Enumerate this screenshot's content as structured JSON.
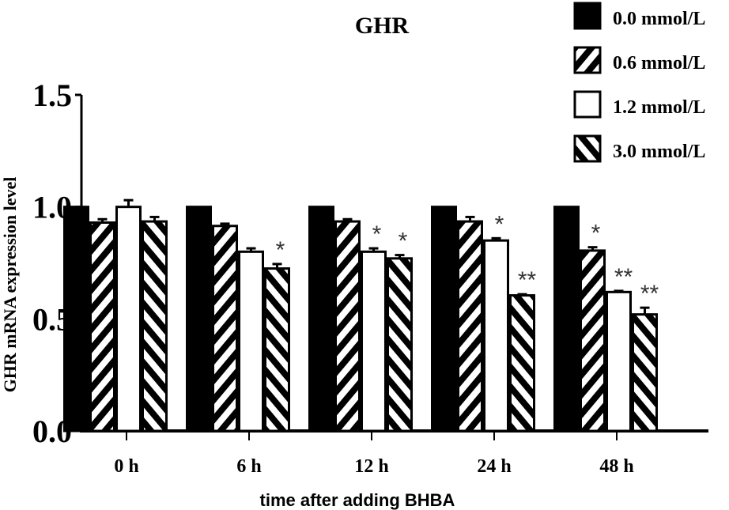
{
  "chart_data": {
    "type": "bar",
    "title": "GHR",
    "xlabel": "time after adding BHBA",
    "ylabel": "GHR mRNA expression level",
    "ylim": [
      0,
      1.5
    ],
    "yticks": [
      "0.0",
      "0.5",
      "1.0",
      "1.5"
    ],
    "categories": [
      "0 h",
      "6 h",
      "12 h",
      "24 h",
      "48 h"
    ],
    "legend_position": "top-right",
    "grid": false,
    "series": [
      {
        "name": "0.0 mmol/L",
        "pattern": "solid-black",
        "values": [
          1.0,
          1.0,
          1.0,
          1.0,
          1.0
        ],
        "errors": [
          0,
          0,
          0,
          0,
          0
        ],
        "significance": [
          "",
          "",
          "",
          "",
          ""
        ]
      },
      {
        "name": "0.6 mmol/L",
        "pattern": "forward-hatch",
        "values": [
          0.93,
          0.915,
          0.935,
          0.935,
          0.805
        ],
        "errors": [
          0.015,
          0.01,
          0.01,
          0.02,
          0.015
        ],
        "significance": [
          "",
          "",
          "",
          "",
          "*"
        ]
      },
      {
        "name": "1.2 mmol/L",
        "pattern": "white",
        "values": [
          1.0,
          0.8,
          0.8,
          0.85,
          0.62
        ],
        "errors": [
          0.03,
          0.015,
          0.015,
          0.01,
          0.005
        ],
        "significance": [
          "",
          "",
          "*",
          "*",
          "**"
        ]
      },
      {
        "name": "3.0 mmol/L",
        "pattern": "back-hatch",
        "values": [
          0.935,
          0.725,
          0.77,
          0.605,
          0.52
        ],
        "errors": [
          0.02,
          0.02,
          0.015,
          0.005,
          0.03
        ],
        "significance": [
          "",
          "*",
          "*",
          "**",
          "**"
        ]
      }
    ]
  }
}
